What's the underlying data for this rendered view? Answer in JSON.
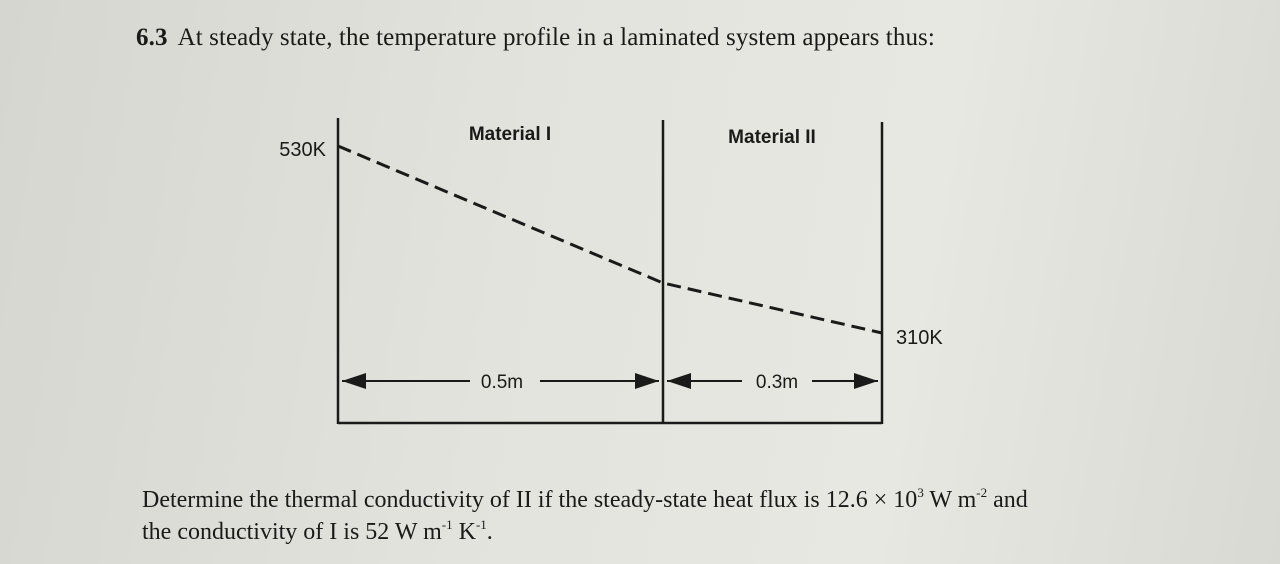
{
  "question": {
    "number": "6.3",
    "text": "At steady state, the temperature profile in a laminated system appears thus:"
  },
  "diagram": {
    "materials": [
      {
        "label": "Material I",
        "thickness": "0.5m"
      },
      {
        "label": "Material II",
        "thickness": "0.3m"
      }
    ],
    "left_temperature": "530K",
    "right_temperature": "310K"
  },
  "prompt": {
    "line1_a": "Determine the thermal conductivity of II if the steady-state heat flux is 12.6 × 10",
    "line1_exp1": "3",
    "line1_b": " W m",
    "line1_exp2": "-2",
    "line1_c": " and",
    "line2_a": "the conductivity of I is 52 W m",
    "line2_exp1": "-1",
    "line2_b": " K",
    "line2_exp2": "-1",
    "line2_c": "."
  }
}
